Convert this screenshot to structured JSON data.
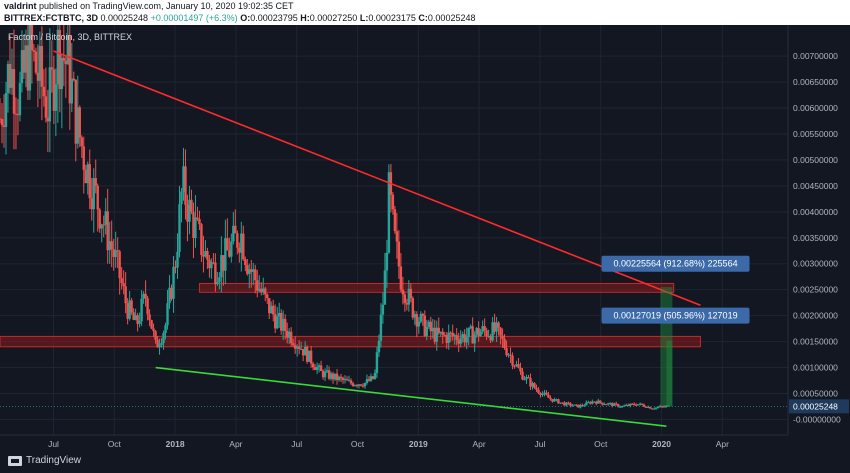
{
  "header": {
    "author": "valdrint",
    "published": "published on TradingView.com, January 10, 2020 19:02:35 CET"
  },
  "ohlc": {
    "symbol": "BITTREX:FCTBTC, 3D",
    "last": "0.00025248",
    "change": "+0.00001497 (+6.3%)",
    "o_label": "O:",
    "o": "0.00023795",
    "h_label": "H:",
    "h": "0.00027250",
    "l_label": "L:",
    "l": "0.00023175",
    "c_label": "C:",
    "c": "0.00025248"
  },
  "footer": {
    "brand": "TradingView"
  },
  "colors": {
    "background": "#131722",
    "up": "#26a69a",
    "down": "#ef5350",
    "resistance_line": "#ff2b2b",
    "support_line": "#39d939",
    "zone": "#8b1a1a",
    "label_bg": "#3c6aa8",
    "price_tag_bg": "#1e3a5c"
  },
  "chart_data": {
    "type": "candlestick",
    "title": "Factom / Bitcoin, 3D, BITTREX",
    "y_ticks": [
      "0.00700000",
      "0.00650000",
      "0.00600000",
      "0.00550000",
      "0.00500000",
      "0.00450000",
      "0.00400000",
      "0.00350000",
      "0.00300000",
      "0.00250000",
      "0.00200000",
      "0.00150000",
      "0.00100000",
      "0.00050000",
      "-0.00000000"
    ],
    "ylim": [
      -0.0003,
      0.0076
    ],
    "y_tick_values": [
      0.007,
      0.0065,
      0.006,
      0.0055,
      0.005,
      0.0045,
      0.004,
      0.0035,
      0.003,
      0.0025,
      0.002,
      0.0015,
      0.001,
      0.0005,
      0.0
    ],
    "x_ticks": [
      {
        "label": "Jul",
        "t": 2017.5
      },
      {
        "label": "Oct",
        "t": 2017.75
      },
      {
        "label": "2018",
        "t": 2018.0
      },
      {
        "label": "Apr",
        "t": 2018.25
      },
      {
        "label": "Jul",
        "t": 2018.5
      },
      {
        "label": "Oct",
        "t": 2018.75
      },
      {
        "label": "2019",
        "t": 2019.0
      },
      {
        "label": "Apr",
        "t": 2019.25
      },
      {
        "label": "Jul",
        "t": 2019.5
      },
      {
        "label": "Oct",
        "t": 2019.75
      },
      {
        "label": "2020",
        "t": 2020.0
      },
      {
        "label": "Apr",
        "t": 2020.25
      }
    ],
    "xlim": [
      2017.28,
      2020.52
    ],
    "last_price": "0.00025248",
    "price_path": [
      [
        2017.28,
        0.0058
      ],
      [
        2017.32,
        0.0068
      ],
      [
        2017.36,
        0.0062
      ],
      [
        2017.4,
        0.0071
      ],
      [
        2017.44,
        0.0066
      ],
      [
        2017.48,
        0.006
      ],
      [
        2017.52,
        0.0072
      ],
      [
        2017.56,
        0.0068
      ],
      [
        2017.6,
        0.0056
      ],
      [
        2017.64,
        0.0048
      ],
      [
        2017.68,
        0.0042
      ],
      [
        2017.72,
        0.0036
      ],
      [
        2017.76,
        0.003
      ],
      [
        2017.8,
        0.0022
      ],
      [
        2017.84,
        0.0018
      ],
      [
        2017.88,
        0.0024
      ],
      [
        2017.92,
        0.0014
      ],
      [
        2017.96,
        0.0018
      ],
      [
        2018.0,
        0.003
      ],
      [
        2018.03,
        0.0045
      ],
      [
        2018.06,
        0.004
      ],
      [
        2018.09,
        0.0036
      ],
      [
        2018.12,
        0.0032
      ],
      [
        2018.16,
        0.0029
      ],
      [
        2018.2,
        0.0031
      ],
      [
        2018.24,
        0.0034
      ],
      [
        2018.27,
        0.0036
      ],
      [
        2018.3,
        0.003
      ],
      [
        2018.34,
        0.0026
      ],
      [
        2018.38,
        0.0022
      ],
      [
        2018.42,
        0.0019
      ],
      [
        2018.46,
        0.0017
      ],
      [
        2018.5,
        0.0015
      ],
      [
        2018.55,
        0.0012
      ],
      [
        2018.6,
        0.0009
      ],
      [
        2018.66,
        0.0008
      ],
      [
        2018.72,
        0.0007
      ],
      [
        2018.78,
        0.0007
      ],
      [
        2018.82,
        0.0008
      ],
      [
        2018.86,
        0.0025
      ],
      [
        2018.88,
        0.0044
      ],
      [
        2018.9,
        0.0035
      ],
      [
        2018.93,
        0.0027
      ],
      [
        2018.97,
        0.0022
      ],
      [
        2019.02,
        0.0018
      ],
      [
        2019.08,
        0.0016
      ],
      [
        2019.14,
        0.0016
      ],
      [
        2019.2,
        0.0016
      ],
      [
        2019.26,
        0.0017
      ],
      [
        2019.32,
        0.0017
      ],
      [
        2019.37,
        0.0013
      ],
      [
        2019.42,
        0.0009
      ],
      [
        2019.48,
        0.0006
      ],
      [
        2019.54,
        0.0004
      ],
      [
        2019.6,
        0.0003
      ],
      [
        2019.66,
        0.00025
      ],
      [
        2019.72,
        0.00035
      ],
      [
        2019.78,
        0.0003
      ],
      [
        2019.84,
        0.00025
      ],
      [
        2019.9,
        0.0003
      ],
      [
        2019.96,
        0.00022
      ],
      [
        2020.02,
        0.00025
      ]
    ],
    "resistance_line": {
      "from": [
        2017.5,
        0.0071
      ],
      "to": [
        2020.16,
        0.0022
      ]
    },
    "support_line": {
      "from": [
        2017.92,
        0.001
      ],
      "to": [
        2020.02,
        -0.00013
      ]
    },
    "zones": [
      {
        "y_low": 0.00245,
        "y_high": 0.00262,
        "x_from": 2018.1,
        "x_to": 2020.05
      },
      {
        "y_low": 0.0014,
        "y_high": 0.0016,
        "x_from": 2017.28,
        "x_to": 2020.16
      }
    ],
    "annotations": [
      {
        "text": "0.00225564 (912.68%) 225564",
        "x": 2020.0,
        "y": 0.003
      },
      {
        "text": "0.00127019 (505.96%) 127019",
        "x": 2020.0,
        "y": 0.002
      }
    ]
  }
}
